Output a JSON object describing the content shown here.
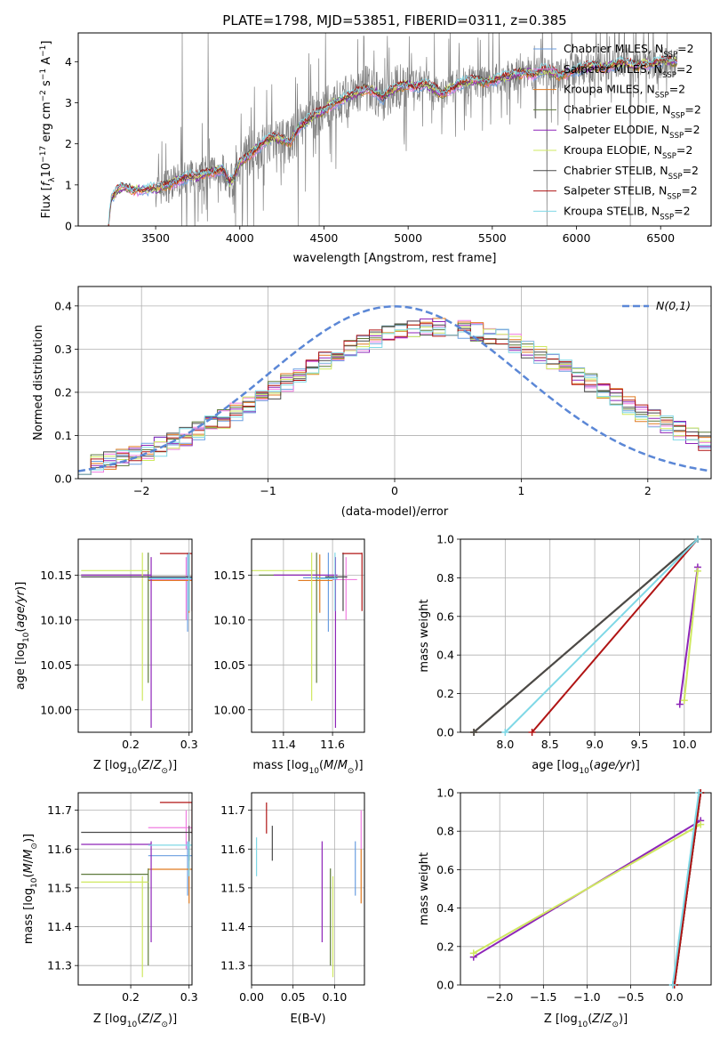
{
  "title": "PLATE=1798, MJD=53851, FIBERID=0311, z=0.385",
  "models": [
    {
      "name": "Chabrier MILES",
      "color": "#6a9ee0"
    },
    {
      "name": "Salpeter MILES",
      "color": "#f07de0"
    },
    {
      "name": "Kroupa MILES",
      "color": "#e07b22"
    },
    {
      "name": "Chabrier ELODIE",
      "color": "#5e7a3c"
    },
    {
      "name": "Salpeter ELODIE",
      "color": "#8e25b8"
    },
    {
      "name": "Kroupa ELODIE",
      "color": "#cfe860"
    },
    {
      "name": "Chabrier STELIB",
      "color": "#4a4a4a"
    },
    {
      "name": "Salpeter STELIB",
      "color": "#b01414"
    },
    {
      "name": "Kroupa STELIB",
      "color": "#7fd8e6"
    }
  ],
  "legend_suffix_nssp": "N",
  "legend_suffix_sub": "SSP",
  "legend_suffix_val": "=2",
  "chart_data": [
    {
      "id": "spectrum",
      "type": "line",
      "xlabel": "wavelength [Angstrom, rest frame]",
      "ylabel": "Flux [f_λ 10^-17 erg cm^-2 s^-1 A^-1]",
      "xlim": [
        3040,
        6800
      ],
      "ylim": [
        0,
        4.7
      ],
      "xticks": [
        3500,
        4000,
        4500,
        5000,
        5500,
        6000,
        6500
      ],
      "yticks": [
        0,
        1,
        2,
        3,
        4
      ],
      "grid": false,
      "legend": "upper right",
      "data_color": "#808080",
      "continuum": [
        [
          3220,
          0
        ],
        [
          3235,
          0.65
        ],
        [
          3250,
          0.72
        ],
        [
          3270,
          0.85
        ],
        [
          3300,
          0.95
        ],
        [
          3350,
          0.9
        ],
        [
          3400,
          0.88
        ],
        [
          3450,
          0.9
        ],
        [
          3500,
          0.9
        ],
        [
          3550,
          0.95
        ],
        [
          3600,
          1.05
        ],
        [
          3650,
          1.15
        ],
        [
          3700,
          1.2
        ],
        [
          3750,
          1.2
        ],
        [
          3800,
          1.3
        ],
        [
          3850,
          1.35
        ],
        [
          3900,
          1.4
        ],
        [
          3940,
          1.05
        ],
        [
          3970,
          1.2
        ],
        [
          4000,
          1.55
        ],
        [
          4050,
          1.7
        ],
        [
          4100,
          1.9
        ],
        [
          4150,
          2.05
        ],
        [
          4200,
          2.15
        ],
        [
          4250,
          2.1
        ],
        [
          4300,
          2.05
        ],
        [
          4350,
          2.4
        ],
        [
          4400,
          2.55
        ],
        [
          4450,
          2.7
        ],
        [
          4500,
          2.8
        ],
        [
          4550,
          3.0
        ],
        [
          4600,
          3.05
        ],
        [
          4650,
          3.15
        ],
        [
          4700,
          3.25
        ],
        [
          4750,
          3.35
        ],
        [
          4800,
          3.3
        ],
        [
          4850,
          3.1
        ],
        [
          4900,
          3.3
        ],
        [
          4950,
          3.4
        ],
        [
          5000,
          3.45
        ],
        [
          5050,
          3.4
        ],
        [
          5100,
          3.45
        ],
        [
          5150,
          3.35
        ],
        [
          5200,
          3.2
        ],
        [
          5250,
          3.35
        ],
        [
          5300,
          3.45
        ],
        [
          5350,
          3.5
        ],
        [
          5400,
          3.55
        ],
        [
          5450,
          3.5
        ],
        [
          5500,
          3.55
        ],
        [
          5550,
          3.6
        ],
        [
          5600,
          3.65
        ],
        [
          5650,
          3.7
        ],
        [
          5700,
          3.75
        ],
        [
          5750,
          3.7
        ],
        [
          5800,
          3.8
        ],
        [
          5850,
          3.75
        ],
        [
          5900,
          3.65
        ],
        [
          5950,
          3.75
        ],
        [
          6000,
          3.8
        ],
        [
          6050,
          3.85
        ],
        [
          6100,
          3.9
        ],
        [
          6150,
          3.85
        ],
        [
          6200,
          3.9
        ],
        [
          6250,
          3.95
        ],
        [
          6300,
          3.95
        ],
        [
          6350,
          3.9
        ],
        [
          6400,
          3.95
        ],
        [
          6450,
          3.95
        ],
        [
          6500,
          4.0
        ],
        [
          6550,
          4.0
        ],
        [
          6600,
          4.0
        ]
      ]
    },
    {
      "id": "residuals",
      "type": "histogram",
      "xlabel": "(data-model)/error",
      "ylabel": "Normed distribution",
      "xlim": [
        -2.5,
        2.5
      ],
      "ylim": [
        0,
        0.445
      ],
      "xticks": [
        -2,
        -1,
        0,
        1,
        2
      ],
      "yticks": [
        0.0,
        0.1,
        0.2,
        0.3,
        0.4
      ],
      "grid": true,
      "legend": "upper right",
      "reference_curve": {
        "label": "N(0,1)",
        "mean": 0,
        "sigma": 1,
        "color": "#5b87d6"
      }
    },
    {
      "id": "age_vs_Z",
      "type": "errorbar",
      "xlabel": "Z [log10(Z/Z☉)]",
      "ylabel": "age  [log10(age/yr)]",
      "xlim": [
        0.11,
        0.305
      ],
      "ylim": [
        9.975,
        10.19
      ],
      "xticks": [
        0.2,
        0.3
      ],
      "yticks": [
        10.0,
        10.05,
        10.1,
        10.15
      ],
      "grid": true
    },
    {
      "id": "age_vs_mass",
      "type": "errorbar",
      "xlabel": "mass [log10(M/M☉)]",
      "ylabel": "",
      "xlim": [
        11.27,
        11.73
      ],
      "ylim": [
        9.975,
        10.19
      ],
      "xticks": [
        11.4,
        11.6
      ],
      "yticks": [
        10.0,
        10.05,
        10.1,
        10.15
      ],
      "grid": true
    },
    {
      "id": "weight_vs_age",
      "type": "line",
      "xlabel": "age  [log10(age/yr)]",
      "ylabel": "mass weight",
      "xlim": [
        7.5,
        10.3
      ],
      "ylim": [
        0,
        1
      ],
      "xticks": [
        8.0,
        8.5,
        9.0,
        9.5,
        10.0
      ],
      "yticks": [
        0.0,
        0.2,
        0.4,
        0.6,
        0.8,
        1.0
      ],
      "grid": true
    },
    {
      "id": "mass_vs_Z",
      "type": "errorbar",
      "xlabel": "Z [log10(Z/Z☉)]",
      "ylabel": "mass [log10(M/M☉)]",
      "xlim": [
        0.11,
        0.305
      ],
      "ylim": [
        11.25,
        11.745
      ],
      "xticks": [
        0.2,
        0.3
      ],
      "yticks": [
        11.3,
        11.4,
        11.5,
        11.6,
        11.7
      ],
      "grid": true
    },
    {
      "id": "mass_vs_ebv",
      "type": "errorbar",
      "xlabel": "E(B-V)",
      "ylabel": "",
      "xlim": [
        0.0,
        0.136
      ],
      "ylim": [
        11.25,
        11.745
      ],
      "xticks": [
        0.0,
        0.05,
        0.1
      ],
      "yticks": [
        11.3,
        11.4,
        11.5,
        11.6,
        11.7
      ],
      "grid": true
    },
    {
      "id": "weight_vs_Z",
      "type": "line",
      "xlabel": "Z [log10(Z/Z☉)]",
      "ylabel": "mass weight",
      "xlim": [
        -2.45,
        0.42
      ],
      "ylim": [
        0,
        1
      ],
      "xticks": [
        -2.0,
        -1.5,
        -1.0,
        -0.5,
        0.0
      ],
      "yticks": [
        0.0,
        0.2,
        0.4,
        0.6,
        0.8,
        1.0
      ],
      "grid": true
    }
  ],
  "fits": [
    {
      "model": 0,
      "Z": 0.2975,
      "Zlo": 0.23,
      "Zhi": 0.305,
      "age": 10.147,
      "agelo": 10.087,
      "agehi": 10.175,
      "mass": 11.583,
      "masslo": 11.48,
      "masshi": 11.62,
      "ebv": 0.125,
      "ebvlo": 11.48,
      "ebvhi": 11.62,
      "ages": [
        7.65,
        10.15
      ],
      "w_age": [
        0.0,
        1.0
      ],
      "Zs": [
        0.0,
        0.3
      ],
      "w_Z": [
        0.0,
        1.0
      ]
    },
    {
      "model": 1,
      "Z": 0.295,
      "Zlo": 0.23,
      "Zhi": 0.305,
      "age": 10.145,
      "agelo": 10.1,
      "agehi": 10.17,
      "mass": 11.655,
      "masslo": 11.6,
      "masshi": 11.7,
      "ebv": 0.132,
      "ebvlo": 11.6,
      "ebvhi": 11.7,
      "ages": [
        7.65,
        10.15
      ],
      "w_age": [
        0.0,
        1.0
      ],
      "Zs": [
        0.0,
        0.3
      ],
      "w_Z": [
        0.0,
        1.0
      ]
    },
    {
      "model": 2,
      "Z": 0.3,
      "Zlo": 0.23,
      "Zhi": 0.305,
      "age": 10.144,
      "agelo": 10.108,
      "agehi": 10.173,
      "mass": 11.548,
      "masslo": 11.46,
      "masshi": 11.6,
      "ebv": 0.132,
      "ebvlo": 11.46,
      "ebvhi": 11.6,
      "ages": [
        7.65,
        10.15
      ],
      "w_age": [
        0.0,
        1.0
      ],
      "Zs": [
        0.0,
        0.3
      ],
      "w_Z": [
        0.0,
        1.0
      ]
    },
    {
      "model": 3,
      "Z": 0.23,
      "Zlo": 0.115,
      "Zhi": 0.23,
      "age": 10.15,
      "agelo": 10.03,
      "agehi": 10.175,
      "mass": 11.535,
      "masslo": 11.3,
      "masshi": 11.55,
      "ebv": 0.095,
      "ebvlo": 11.3,
      "ebvhi": 11.55,
      "ages": [
        7.65,
        10.15
      ],
      "w_age": [
        0.0,
        1.0
      ],
      "Zs": [
        0.0,
        0.3
      ],
      "w_Z": [
        0.0,
        1.0
      ]
    },
    {
      "model": 4,
      "Z": 0.235,
      "Zlo": 0.115,
      "Zhi": 0.235,
      "age": 10.15,
      "agelo": 9.98,
      "agehi": 10.17,
      "mass": 11.612,
      "masslo": 11.36,
      "masshi": 11.62,
      "ebv": 0.085,
      "ebvlo": 11.36,
      "ebvhi": 11.62,
      "ages": [
        9.95,
        10.15
      ],
      "w_age": [
        0.145,
        0.855
      ],
      "Zs": [
        -2.3,
        0.3
      ],
      "w_Z": [
        0.145,
        0.855
      ]
    },
    {
      "model": 5,
      "Z": 0.22,
      "Zlo": 0.115,
      "Zhi": 0.23,
      "age": 10.155,
      "agelo": 10.01,
      "agehi": 10.175,
      "mass": 11.515,
      "masslo": 11.27,
      "masshi": 11.53,
      "ebv": 0.098,
      "ebvlo": 11.27,
      "ebvhi": 11.53,
      "ages": [
        10.0,
        10.15
      ],
      "w_age": [
        0.165,
        0.835
      ],
      "Zs": [
        -2.3,
        0.3
      ],
      "w_Z": [
        0.165,
        0.835
      ]
    },
    {
      "model": 6,
      "Z": 0.3,
      "Zlo": 0.115,
      "Zhi": 0.305,
      "age": 10.148,
      "agelo": 10.11,
      "agehi": 10.175,
      "mass": 11.643,
      "masslo": 11.57,
      "masshi": 11.66,
      "ebv": 0.025,
      "ebvlo": 11.57,
      "ebvhi": 11.66,
      "ages": [
        7.65,
        10.15
      ],
      "w_age": [
        0.0,
        1.0
      ],
      "Zs": [
        0.0,
        0.3
      ],
      "w_Z": [
        0.0,
        1.0
      ]
    },
    {
      "model": 7,
      "Z": 0.305,
      "Zlo": 0.25,
      "Zhi": 0.305,
      "age": 10.174,
      "agelo": 10.11,
      "agehi": 10.175,
      "mass": 11.72,
      "masslo": 11.64,
      "masshi": 11.72,
      "ebv": 0.018,
      "ebvlo": 11.64,
      "ebvhi": 11.72,
      "ages": [
        8.3,
        10.15
      ],
      "w_age": [
        0.0,
        1.0
      ],
      "Zs": [
        0.0,
        0.3
      ],
      "w_Z": [
        0.0,
        1.0
      ]
    },
    {
      "model": 8,
      "Z": 0.3,
      "Zlo": 0.23,
      "Zhi": 0.305,
      "age": 10.146,
      "agelo": 10.11,
      "agehi": 10.175,
      "mass": 11.61,
      "masslo": 11.53,
      "masshi": 11.62,
      "ebv": 0.006,
      "ebvlo": 11.53,
      "ebvhi": 11.63,
      "ages": [
        8.0,
        10.15
      ],
      "w_age": [
        0.0,
        1.0
      ],
      "Zs": [
        -0.02,
        0.28
      ],
      "w_Z": [
        0.0,
        1.0
      ]
    }
  ]
}
